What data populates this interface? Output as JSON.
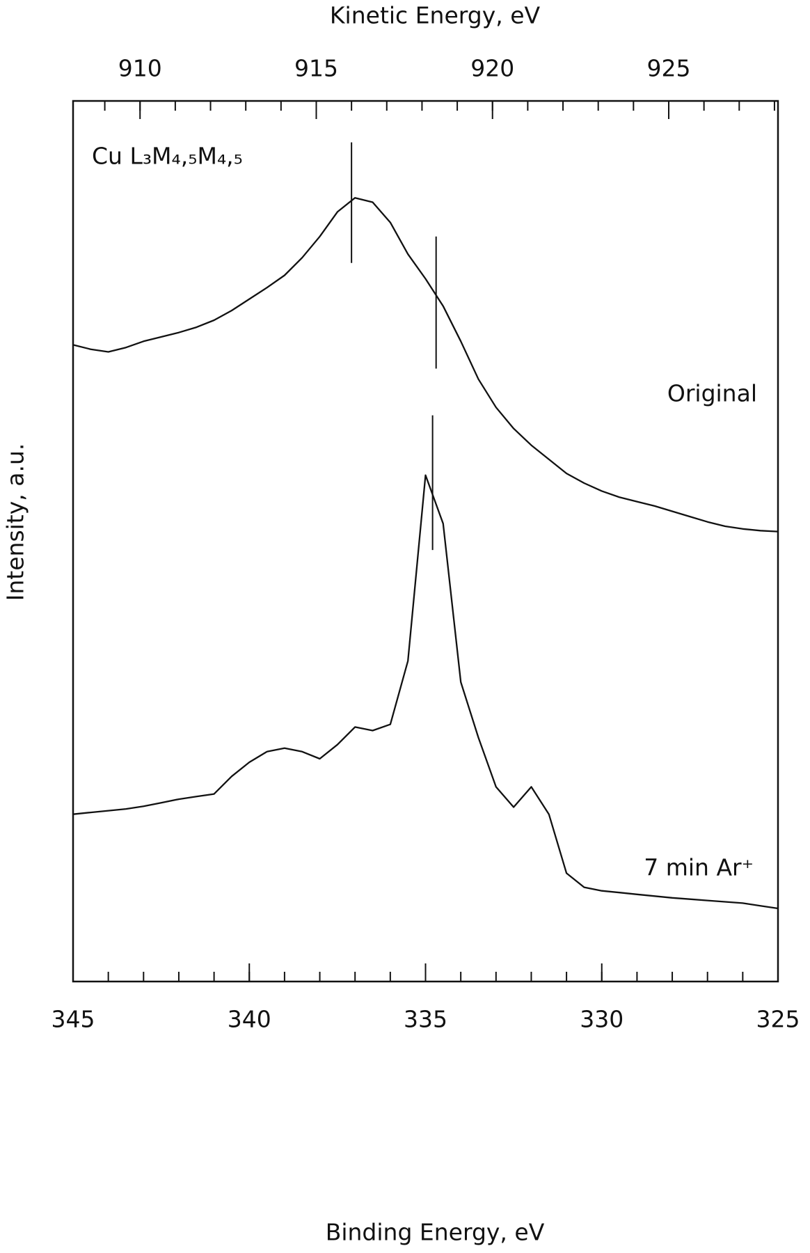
{
  "chart_data": {
    "type": "line",
    "xlabel": "Binding Energy, eV",
    "x2label": "Kinetic Energy, eV",
    "ylabel": "Intensity, a.u.",
    "annotation": "Cu L₃M₄,₅M₄,₅",
    "x": [
      345,
      344.5,
      344,
      343.5,
      343,
      342.5,
      342,
      341.5,
      341,
      340.5,
      340,
      339.5,
      339,
      338.5,
      338,
      337.5,
      337,
      336.5,
      336,
      335.5,
      335,
      334.5,
      334,
      333.5,
      333,
      332.5,
      332,
      331.5,
      331,
      330.5,
      330,
      329.5,
      329,
      328.5,
      328,
      327.5,
      327,
      326.5,
      326,
      325.5,
      325
    ],
    "series": [
      {
        "name": "Original",
        "color": "#111111",
        "values": [
          72.3,
          71.8,
          71.5,
          72.0,
          72.7,
          73.2,
          73.7,
          74.3,
          75.1,
          76.2,
          77.5,
          78.8,
          80.2,
          82.2,
          84.6,
          87.4,
          89.0,
          88.5,
          86.2,
          82.6,
          79.8,
          76.7,
          72.7,
          68.4,
          65.2,
          62.8,
          60.9,
          59.3,
          57.7,
          56.6,
          55.7,
          55.0,
          54.5,
          54.0,
          53.4,
          52.8,
          52.2,
          51.7,
          51.4,
          51.2,
          51.1
        ]
      },
      {
        "name": "7 min Ar⁺",
        "color": "#111111",
        "values": [
          19.0,
          19.2,
          19.4,
          19.6,
          19.9,
          20.3,
          20.7,
          21.0,
          21.3,
          23.3,
          24.9,
          26.1,
          26.5,
          26.1,
          25.3,
          26.9,
          28.9,
          28.5,
          29.2,
          36.4,
          57.5,
          52.0,
          34.0,
          27.7,
          22.1,
          19.8,
          22.1,
          19.0,
          12.3,
          10.7,
          10.3,
          10.1,
          9.9,
          9.7,
          9.5,
          9.35,
          9.2,
          9.05,
          8.9,
          8.6,
          8.3
        ]
      }
    ],
    "peak_markers": [
      {
        "x": 337.1,
        "y": [
          81.6,
          95.3
        ]
      },
      {
        "x": 334.7,
        "y": [
          69.6,
          84.6
        ]
      },
      {
        "x": 334.8,
        "y": [
          49.0,
          64.3
        ]
      }
    ],
    "xlim": [
      345,
      325
    ],
    "xticks": [
      345,
      340,
      335,
      330,
      325
    ],
    "xminor_ticks": [
      345,
      344,
      343,
      342,
      341,
      340,
      339,
      338,
      337,
      336,
      335,
      334,
      333,
      332,
      331,
      330,
      329,
      328,
      327,
      326,
      325
    ],
    "x2lim": [
      908.1,
      928.1
    ],
    "x2ticks": [
      910,
      915,
      920,
      925
    ],
    "x2minor_ticks": [
      909,
      910,
      911,
      912,
      913,
      914,
      915,
      916,
      917,
      918,
      919,
      920,
      921,
      922,
      923,
      924,
      925,
      926,
      927,
      928
    ],
    "ylim": [
      0,
      100
    ],
    "grid": false
  }
}
